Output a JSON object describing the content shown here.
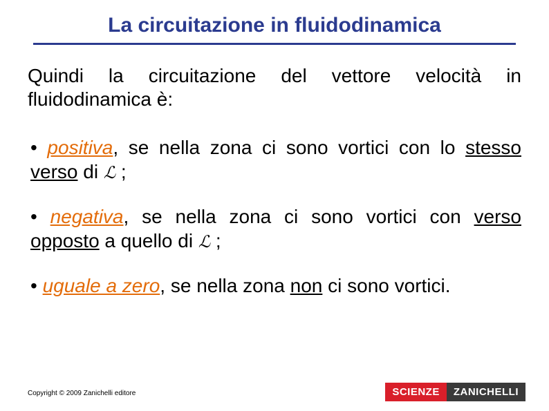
{
  "title": "La circuitazione in fluidodinamica",
  "intro": "Quindi la circuitazione del vettore velocità in fluidodinamica è:",
  "bullets": {
    "b1": {
      "kw": "positiva",
      "t1": ", se nella zona ci sono vortici con lo ",
      "u1": "stesso verso",
      "t2": " di ",
      "sym": "ℒ",
      "t3": " ;"
    },
    "b2": {
      "kw": "negativa",
      "t1": ", se nella zona ci sono vortici con ",
      "u1": "verso opposto",
      "t2": " a quello di ",
      "sym": "ℒ",
      "t3": " ;"
    },
    "b3": {
      "kw": "uguale a zero",
      "t1": ", se nella zona ",
      "u1": "non",
      "t2": " ci sono vortici."
    }
  },
  "footer": {
    "copyright": "Copyright © 2009 Zanichelli editore",
    "brand1": "SCIENZE",
    "brand2": "ZANICHELLI"
  },
  "colors": {
    "title_color": "#2b3b8f",
    "keyword_color": "#e36c0a",
    "brand_red": "#d91f2a",
    "brand_dark": "#3a3a3a",
    "text": "#000000",
    "background": "#ffffff"
  },
  "typography": {
    "title_fontsize": 30,
    "body_fontsize": 28,
    "footer_fontsize": 10,
    "brand_fontsize": 15
  }
}
